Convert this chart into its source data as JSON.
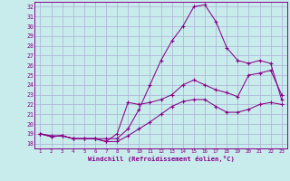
{
  "xlabel": "Windchill (Refroidissement éolien,°C)",
  "bg_color": "#c8ecec",
  "grid_color": "#b0b8d8",
  "line_color": "#880088",
  "x_ticks": [
    1,
    2,
    3,
    4,
    5,
    6,
    7,
    8,
    9,
    10,
    11,
    12,
    13,
    14,
    15,
    16,
    17,
    18,
    19,
    20,
    21,
    22,
    23
  ],
  "y_ticks": [
    18,
    19,
    20,
    21,
    22,
    23,
    24,
    25,
    26,
    27,
    28,
    29,
    30,
    31,
    32
  ],
  "ylim": [
    17.5,
    32.5
  ],
  "xlim": [
    0.5,
    23.5
  ],
  "curves": [
    [
      19.0,
      18.7,
      18.8,
      18.5,
      18.5,
      18.5,
      18.2,
      18.2,
      18.8,
      19.5,
      20.2,
      21.0,
      21.8,
      22.3,
      22.5,
      22.5,
      21.8,
      21.2,
      21.2,
      21.5,
      22.0,
      22.2,
      22.0
    ],
    [
      19.0,
      18.7,
      18.8,
      18.5,
      18.5,
      18.5,
      18.2,
      19.0,
      22.2,
      22.0,
      22.2,
      22.5,
      23.0,
      24.0,
      24.5,
      24.0,
      23.5,
      23.2,
      22.8,
      25.0,
      25.2,
      25.5,
      23.0
    ],
    [
      19.0,
      18.8,
      18.8,
      18.5,
      18.5,
      18.5,
      18.5,
      18.5,
      19.5,
      21.5,
      24.0,
      26.5,
      28.5,
      30.0,
      32.0,
      32.2,
      30.5,
      27.8,
      26.5,
      26.2,
      26.5,
      26.2,
      22.5
    ]
  ]
}
